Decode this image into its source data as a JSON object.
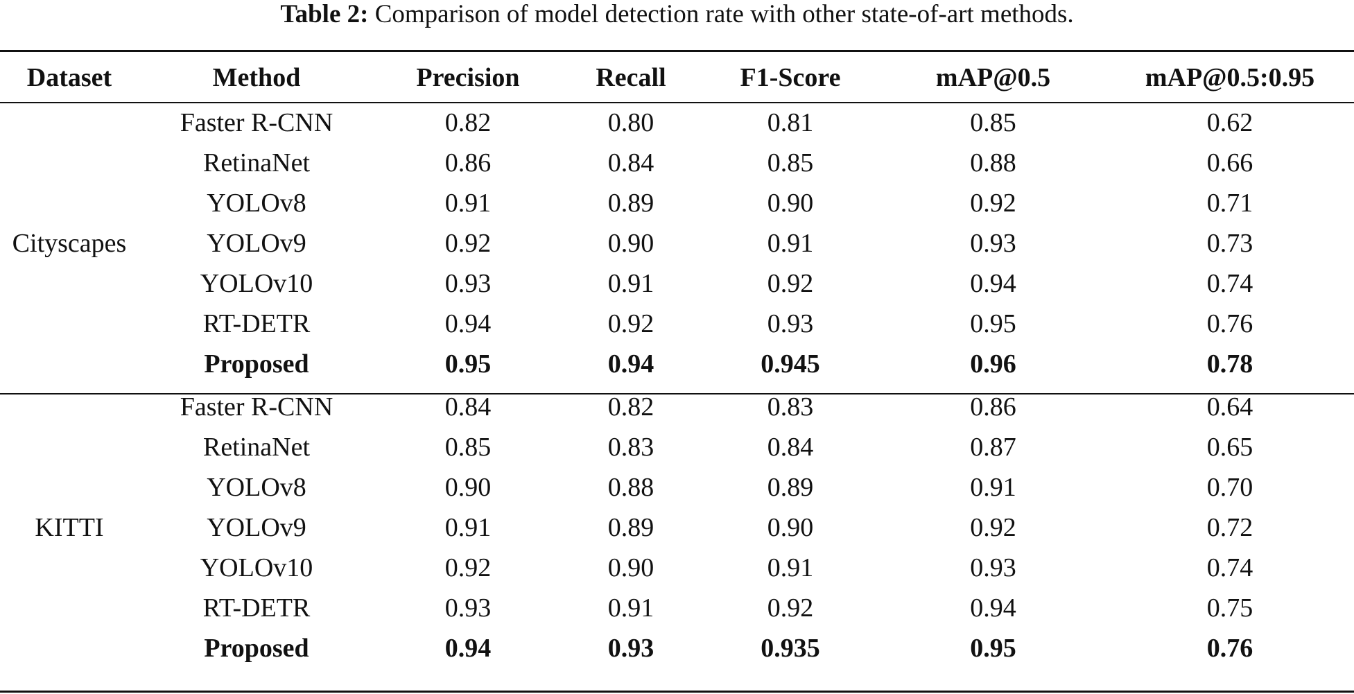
{
  "caption": {
    "label": "Table 2:",
    "text": "Comparison of model detection rate with other state-of-art methods."
  },
  "table": {
    "headers": [
      "Dataset",
      "Method",
      "Precision",
      "Recall",
      "F1-Score",
      "mAP@0.5",
      "mAP@0.5:0.95"
    ],
    "groups": [
      {
        "dataset": "Cityscapes",
        "rows": [
          {
            "cells": [
              "Faster R-CNN",
              "0.82",
              "0.80",
              "0.81",
              "0.85",
              "0.62"
            ],
            "bold": false
          },
          {
            "cells": [
              "RetinaNet",
              "0.86",
              "0.84",
              "0.85",
              "0.88",
              "0.66"
            ],
            "bold": false
          },
          {
            "cells": [
              "YOLOv8",
              "0.91",
              "0.89",
              "0.90",
              "0.92",
              "0.71"
            ],
            "bold": false
          },
          {
            "cells": [
              "YOLOv9",
              "0.92",
              "0.90",
              "0.91",
              "0.93",
              "0.73"
            ],
            "bold": false
          },
          {
            "cells": [
              "YOLOv10",
              "0.93",
              "0.91",
              "0.92",
              "0.94",
              "0.74"
            ],
            "bold": false
          },
          {
            "cells": [
              "RT-DETR",
              "0.94",
              "0.92",
              "0.93",
              "0.95",
              "0.76"
            ],
            "bold": false
          },
          {
            "cells": [
              "Proposed",
              "0.95",
              "0.94",
              "0.945",
              "0.96",
              "0.78"
            ],
            "bold": true
          }
        ]
      },
      {
        "dataset": "KITTI",
        "rows": [
          {
            "cells": [
              "Faster R-CNN",
              "0.84",
              "0.82",
              "0.83",
              "0.86",
              "0.64"
            ],
            "bold": false
          },
          {
            "cells": [
              "RetinaNet",
              "0.85",
              "0.83",
              "0.84",
              "0.87",
              "0.65"
            ],
            "bold": false
          },
          {
            "cells": [
              "YOLOv8",
              "0.90",
              "0.88",
              "0.89",
              "0.91",
              "0.70"
            ],
            "bold": false
          },
          {
            "cells": [
              "YOLOv9",
              "0.91",
              "0.89",
              "0.90",
              "0.92",
              "0.72"
            ],
            "bold": false
          },
          {
            "cells": [
              "YOLOv10",
              "0.92",
              "0.90",
              "0.91",
              "0.93",
              "0.74"
            ],
            "bold": false
          },
          {
            "cells": [
              "RT-DETR",
              "0.93",
              "0.91",
              "0.92",
              "0.94",
              "0.75"
            ],
            "bold": false
          },
          {
            "cells": [
              "Proposed",
              "0.94",
              "0.93",
              "0.935",
              "0.95",
              "0.76"
            ],
            "bold": true
          }
        ]
      }
    ]
  }
}
